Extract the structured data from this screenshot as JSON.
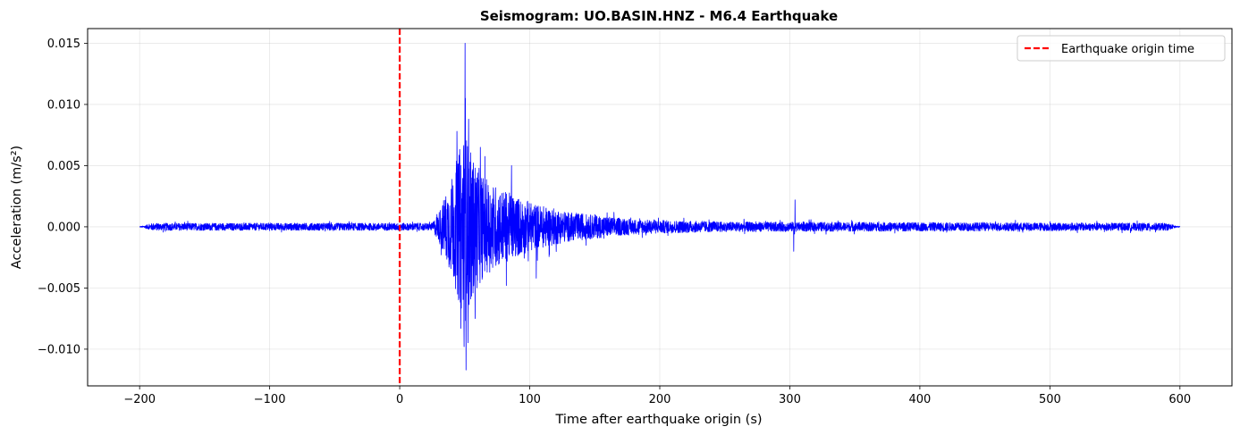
{
  "chart_data": {
    "type": "line",
    "title": "Seismogram: UO.BASIN.HNZ - M6.4 Earthquake",
    "xlabel": "Time after earthquake origin (s)",
    "ylabel": "Acceleration (m/s²)",
    "xlim": [
      -240,
      640
    ],
    "ylim": [
      -0.013,
      0.0162
    ],
    "xticks": [
      -200,
      -100,
      0,
      100,
      200,
      300,
      400,
      500,
      600
    ],
    "xtick_labels": [
      "−200",
      "−100",
      "0",
      "100",
      "200",
      "300",
      "400",
      "500",
      "600"
    ],
    "yticks": [
      -0.01,
      -0.005,
      0.0,
      0.005,
      0.01,
      0.015
    ],
    "ytick_labels": [
      "−0.010",
      "−0.005",
      "0.000",
      "0.005",
      "0.010",
      "0.015"
    ],
    "grid": true,
    "legend_position": "top-right",
    "series": [
      {
        "name": "seismogram",
        "color": "#0000ff",
        "t_start": -200,
        "t_end": 600,
        "noise_amplitude": 0.0003,
        "envelope": [
          {
            "t": -200,
            "amp": 0.0003
          },
          {
            "t": 25,
            "amp": 0.0003
          },
          {
            "t": 30,
            "amp": 0.0012
          },
          {
            "t": 40,
            "amp": 0.004
          },
          {
            "t": 50,
            "amp": 0.008
          },
          {
            "t": 55,
            "amp": 0.006
          },
          {
            "t": 65,
            "amp": 0.004
          },
          {
            "t": 80,
            "amp": 0.003
          },
          {
            "t": 100,
            "amp": 0.002
          },
          {
            "t": 130,
            "amp": 0.0012
          },
          {
            "t": 180,
            "amp": 0.0006
          },
          {
            "t": 250,
            "amp": 0.0004
          },
          {
            "t": 600,
            "amp": 0.0003
          }
        ],
        "spikes": [
          {
            "t": 50.2,
            "value": 0.015
          },
          {
            "t": 51,
            "value": -0.0117
          },
          {
            "t": 50.5,
            "value": 0.0105
          },
          {
            "t": 49.5,
            "value": -0.0098
          },
          {
            "t": 53,
            "value": 0.0088
          },
          {
            "t": 47,
            "value": -0.0083
          },
          {
            "t": 44,
            "value": 0.0078
          },
          {
            "t": 62,
            "value": 0.0065
          },
          {
            "t": 58,
            "value": -0.0075
          },
          {
            "t": 86,
            "value": 0.005
          },
          {
            "t": 82,
            "value": -0.0048
          },
          {
            "t": 105,
            "value": -0.0042
          },
          {
            "t": 304,
            "value": 0.0022
          },
          {
            "t": 303,
            "value": -0.002
          }
        ]
      }
    ],
    "reference_lines": [
      {
        "name": "Earthquake origin time",
        "x": 0,
        "color": "#ff0000",
        "style": "dashed"
      }
    ]
  }
}
